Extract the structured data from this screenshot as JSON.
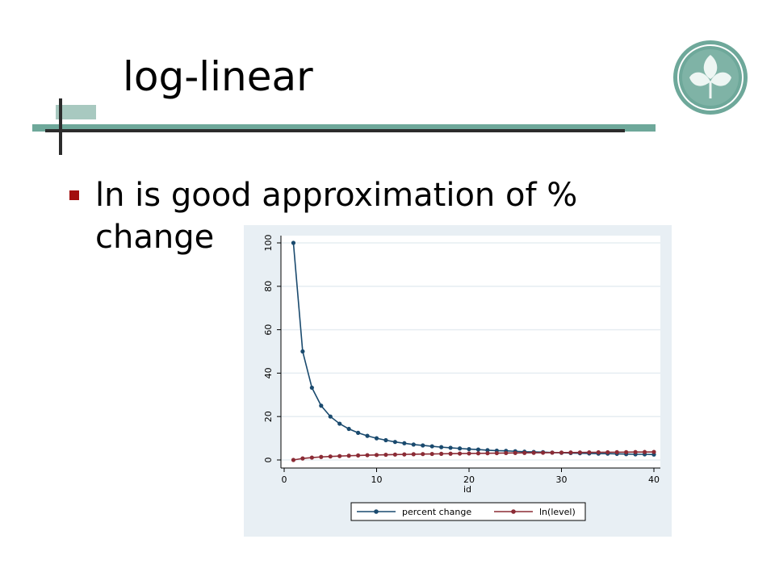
{
  "slide": {
    "title": "log-linear",
    "bullet": "ln is good approximation of % change"
  },
  "colors": {
    "accent_teal": "#6ea89a",
    "bullet_red": "#a20e0e",
    "chart_bg": "#e8eff4",
    "series_percent_change": "#1a4a6e",
    "series_ln_level": "#8b2b35"
  },
  "icons": {
    "logo": "leaf-emblem-icon"
  },
  "chart_data": {
    "type": "line",
    "title": "",
    "xlabel": "id",
    "ylabel": "",
    "xlim": [
      0,
      40
    ],
    "ylim": [
      0,
      100
    ],
    "xticks": [
      "0",
      "10",
      "20",
      "30",
      "40"
    ],
    "yticks": [
      "0",
      "20",
      "40",
      "60",
      "80",
      "100"
    ],
    "grid": true,
    "legend_position": "bottom",
    "x": [
      1,
      2,
      3,
      4,
      5,
      6,
      7,
      8,
      9,
      10,
      11,
      12,
      13,
      14,
      15,
      16,
      17,
      18,
      19,
      20,
      21,
      22,
      23,
      24,
      25,
      26,
      27,
      28,
      29,
      30,
      31,
      32,
      33,
      34,
      35,
      36,
      37,
      38,
      39,
      40
    ],
    "series": [
      {
        "name": "percent change",
        "color": "#1a4a6e",
        "values": [
          100,
          50,
          33.3,
          25,
          20,
          16.7,
          14.3,
          12.5,
          11.1,
          10,
          9.1,
          8.3,
          7.7,
          7.1,
          6.7,
          6.3,
          5.9,
          5.6,
          5.3,
          5,
          4.8,
          4.5,
          4.3,
          4.2,
          4,
          3.8,
          3.7,
          3.6,
          3.4,
          3.3,
          3.2,
          3.1,
          3,
          2.9,
          2.9,
          2.8,
          2.7,
          2.6,
          2.6,
          2.5
        ]
      },
      {
        "name": "ln(level)",
        "color": "#8b2b35",
        "values": [
          0,
          0.69,
          1.1,
          1.39,
          1.61,
          1.79,
          1.95,
          2.08,
          2.2,
          2.3,
          2.4,
          2.48,
          2.56,
          2.64,
          2.71,
          2.77,
          2.83,
          2.89,
          2.94,
          3,
          3.04,
          3.09,
          3.14,
          3.18,
          3.22,
          3.26,
          3.3,
          3.33,
          3.37,
          3.4,
          3.43,
          3.47,
          3.5,
          3.53,
          3.56,
          3.58,
          3.61,
          3.64,
          3.66,
          3.69
        ]
      }
    ]
  }
}
